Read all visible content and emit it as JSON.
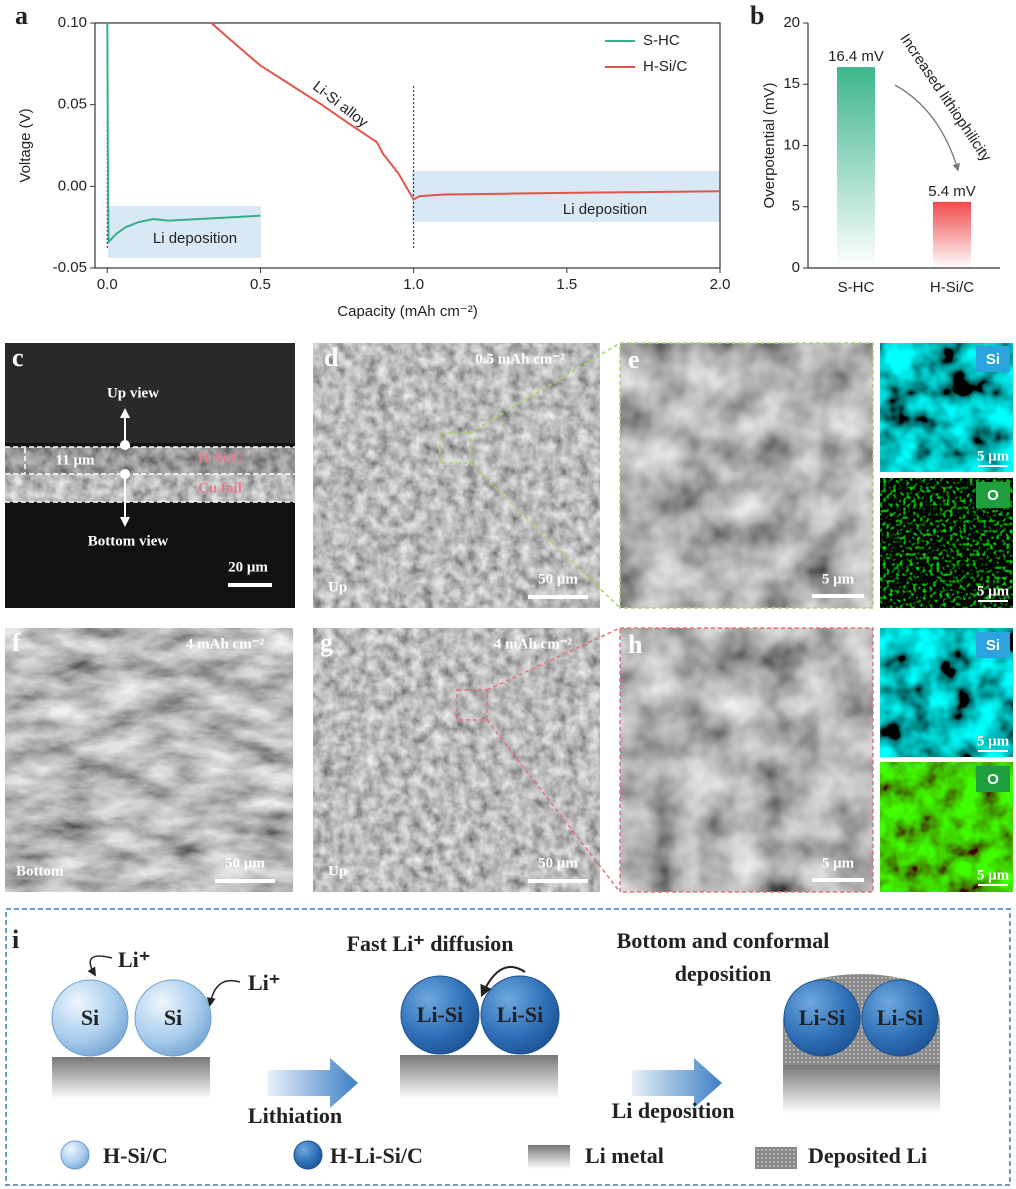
{
  "chart_data": [
    {
      "type": "line",
      "panel_label": "a",
      "xlabel": "Capacity (mAh cm⁻²)",
      "ylabel": "Voltage (V)",
      "xlim": [
        -0.04,
        2.0
      ],
      "ylim": [
        -0.05,
        0.1
      ],
      "xticks": [
        {
          "value": 0,
          "label": "0.0"
        },
        0.5,
        {
          "value": 1,
          "label": "1.0"
        },
        1.5,
        {
          "value": 2,
          "label": "2.0"
        }
      ],
      "yticks": [
        -0.05,
        {
          "value": 0,
          "label": "0.00"
        },
        0.05,
        {
          "value": 0.1,
          "label": "0.10"
        }
      ],
      "vlines": [
        0,
        1
      ],
      "legend": "upper right",
      "annotations": [
        "Li-Si alloy",
        "Li deposition",
        "Li deposition"
      ],
      "series": [
        {
          "name": "S-HC",
          "color": "#3aae8c",
          "x": [
            0,
            0.002,
            0.004,
            0.01,
            0.03,
            0.06,
            0.1,
            0.15,
            0.2,
            0.3,
            0.4,
            0.5
          ],
          "values": [
            0.1,
            0.02,
            -0.034,
            -0.033,
            -0.029,
            -0.025,
            -0.022,
            -0.02,
            -0.021,
            -0.02,
            -0.019,
            -0.018
          ]
        },
        {
          "name": "H-Si/C",
          "color": "#e2554a",
          "x": [
            0.34,
            0.4,
            0.5,
            0.6,
            0.7,
            0.8,
            0.88,
            0.9,
            0.95,
            1.0,
            1.02,
            1.1,
            1.3,
            1.5,
            1.75,
            2.0
          ],
          "values": [
            0.1,
            0.09,
            0.074,
            0.062,
            0.05,
            0.037,
            0.027,
            0.02,
            0.008,
            -0.008,
            -0.006,
            -0.005,
            -0.0045,
            -0.004,
            -0.0035,
            -0.003
          ]
        }
      ]
    },
    {
      "type": "bar",
      "panel_label": "b",
      "ylabel": "Overpotential (mV)",
      "categories": [
        "S-HC",
        "H-Si/C"
      ],
      "values": [
        16.4,
        5.4
      ],
      "value_labels": [
        "16.4 mV",
        "5.4 mV"
      ],
      "colors": [
        "#3cb68a",
        "#f04a4a"
      ],
      "ylim": [
        0,
        20
      ],
      "yticks": [
        0,
        5,
        10,
        15,
        20
      ],
      "annotation": "Increased lithiophilicity"
    }
  ],
  "panel_c": {
    "label": "c",
    "up_view": "Up view",
    "thickness": "11 μm",
    "layer_top": "H-Si/C",
    "layer_bottom": "Cu foil",
    "bottom_view": "Bottom view",
    "scale": "20 μm"
  },
  "panel_d": {
    "label": "d",
    "capacity": "0.5 mAh cm⁻²",
    "view": "Up",
    "scale": "50 μm"
  },
  "panel_e": {
    "label": "e",
    "scale": "5 μm",
    "maps": [
      {
        "element": "Si",
        "scale": "5 μm"
      },
      {
        "element": "O",
        "scale": "5 μm"
      }
    ]
  },
  "panel_f": {
    "label": "f",
    "capacity": "4 mAh cm⁻²",
    "view": "Bottom",
    "scale": "50 μm"
  },
  "panel_g": {
    "label": "g",
    "capacity": "4 mAh cm⁻²",
    "view": "Up",
    "scale": "50 μm"
  },
  "panel_h": {
    "label": "h",
    "scale": "5 μm",
    "maps": [
      {
        "element": "Si",
        "scale": "5 μm"
      },
      {
        "element": "O",
        "scale": "5 μm"
      }
    ]
  },
  "panel_i": {
    "label": "i",
    "ion": "Li⁺",
    "stage1_particles": [
      "Si",
      "Si"
    ],
    "step1": "Lithiation",
    "stage2_title": "Fast Li⁺ diffusion",
    "stage2_particles": [
      "Li-Si",
      "Li-Si"
    ],
    "step2": "Li deposition",
    "stage3_title": [
      "Bottom and conformal",
      "deposition"
    ],
    "stage3_particles": [
      "Li-Si",
      "Li-Si"
    ],
    "legend": [
      "H-Si/C",
      "H-Li-Si/C",
      "Li metal",
      "Deposited Li"
    ]
  }
}
